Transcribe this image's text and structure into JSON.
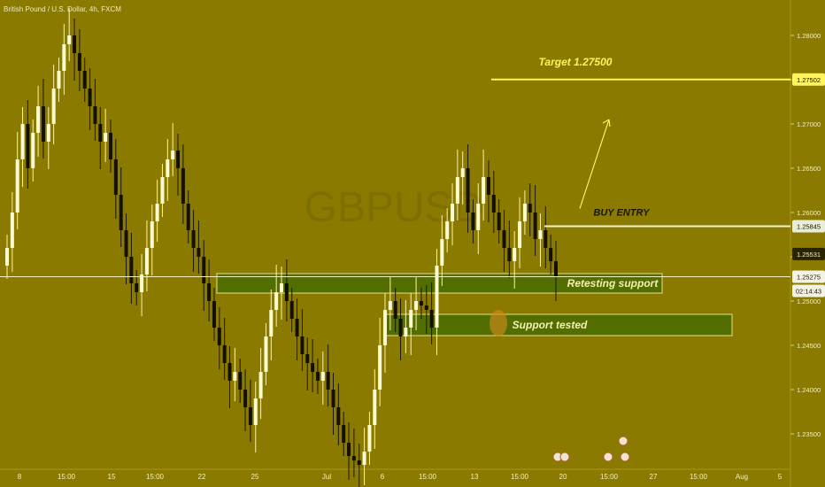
{
  "header": {
    "title": "British Pound / U.S. Dollar, 4h, FXCM"
  },
  "watermark": "GBPUSD",
  "chart_data": {
    "type": "candlestick",
    "ylim": [
      1.231,
      1.284
    ],
    "y_ticks": [
      {
        "v": 1.28,
        "label": "1.28000"
      },
      {
        "v": 1.275,
        "label": "1.27500"
      },
      {
        "v": 1.27,
        "label": "1.27000"
      },
      {
        "v": 1.265,
        "label": "1.26500"
      },
      {
        "v": 1.26,
        "label": "1.26000"
      },
      {
        "v": 1.255,
        "label": "1.25500"
      },
      {
        "v": 1.25,
        "label": "1.25000"
      },
      {
        "v": 1.245,
        "label": "1.24500"
      },
      {
        "v": 1.24,
        "label": "1.24000"
      },
      {
        "v": 1.235,
        "label": "1.23500"
      }
    ],
    "x_ticks": [
      "8",
      "15:00",
      "15",
      "15:00",
      "22",
      "25",
      "Jul",
      "6",
      "15:00",
      "13",
      "15:00",
      "20",
      "15:00",
      "27",
      "15:00",
      "Aug",
      "5"
    ],
    "price_tags": [
      {
        "label": "1.27502",
        "style": "target"
      },
      {
        "label": "1.25845",
        "style": "entry"
      },
      {
        "label": "1.25531",
        "style": "dark"
      },
      {
        "label": "1.25275",
        "style": "last"
      },
      {
        "label": "02:14:43",
        "style": "timer"
      }
    ],
    "levels": {
      "target": 1.27502,
      "entry": 1.25845,
      "last": 1.25275
    },
    "zones": [
      {
        "top": 1.2531,
        "bottom": 1.2509,
        "label": "Retesting support"
      },
      {
        "top": 1.2485,
        "bottom": 1.2461,
        "label": "Support tested"
      }
    ],
    "annotations": {
      "target": "Target 1.27500",
      "entry": "BUY ENTRY"
    },
    "series": [
      {
        "values": [
          1.256,
          1.26,
          1.266,
          1.27,
          1.265,
          1.269,
          1.272,
          1.268,
          1.27,
          1.274,
          1.276,
          1.279,
          1.28,
          1.278,
          1.276,
          1.274,
          1.272,
          1.27,
          1.268,
          1.269,
          1.266,
          1.262,
          1.258,
          1.255,
          1.252,
          1.251,
          1.253,
          1.256,
          1.259,
          1.261,
          1.264,
          1.266,
          1.267,
          1.265,
          1.261,
          1.258,
          1.256,
          1.255,
          1.252,
          1.25,
          1.247,
          1.245,
          1.243,
          1.241,
          1.242,
          1.24,
          1.238,
          1.236,
          1.239,
          1.242,
          1.246,
          1.249,
          1.251,
          1.252,
          1.25,
          1.248,
          1.246,
          1.244,
          1.243,
          1.242,
          1.241,
          1.242,
          1.24,
          1.238,
          1.236,
          1.234,
          1.2325,
          1.232,
          1.2315,
          1.233,
          1.236,
          1.24,
          1.245,
          1.249,
          1.25,
          1.248,
          1.246,
          1.247,
          1.249,
          1.25,
          1.2495,
          1.249,
          1.247,
          1.254,
          1.257,
          1.259,
          1.261,
          1.264,
          1.265,
          1.26,
          1.258,
          1.261,
          1.264,
          1.262,
          1.26,
          1.258,
          1.256,
          1.2545,
          1.256,
          1.259,
          1.261,
          1.26,
          1.257,
          1.258,
          1.256,
          1.2545,
          1.2527
        ]
      }
    ]
  }
}
